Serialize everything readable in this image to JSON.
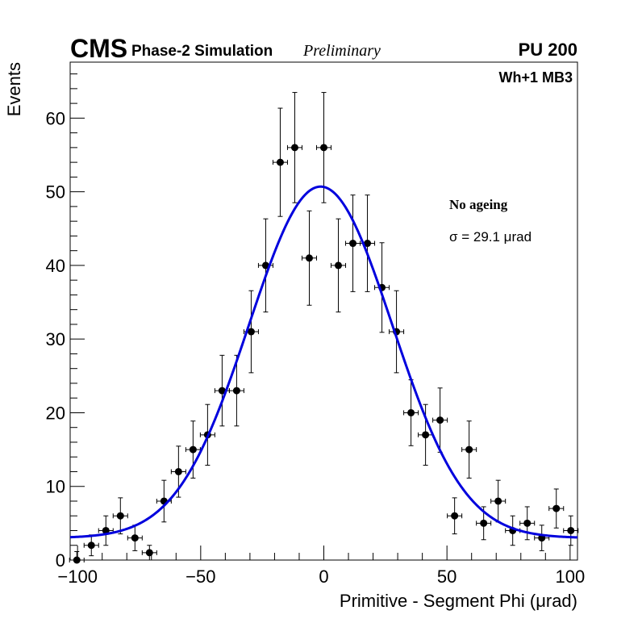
{
  "header": {
    "experiment": "CMS",
    "simulation_label": "Phase-2 Simulation",
    "status_label": "Preliminary",
    "pileup_label": "PU 200"
  },
  "chart_data": {
    "type": "scatter",
    "title": "",
    "region_label": "Wh+1 MB3",
    "annotation_title": "No ageing",
    "annotation_fit": "σ = 29.1 μrad",
    "xlabel": "Primitive - Segment Phi (μrad)",
    "ylabel": "Events",
    "xlim": [
      -103,
      103
    ],
    "ylim": [
      0,
      67.6
    ],
    "xticks": [
      -100,
      -50,
      0,
      50,
      100
    ],
    "xtick_labels": [
      "−100",
      "−50",
      "0",
      "50",
      "100"
    ],
    "yticks": [
      0,
      10,
      20,
      30,
      40,
      50,
      60
    ],
    "ytick_labels": [
      "0",
      "10",
      "20",
      "30",
      "40",
      "50",
      "60"
    ],
    "grid": false,
    "colors": {
      "points": "#000000",
      "fit": "#0000dd"
    },
    "bin_width": 5.9,
    "series": [
      {
        "name": "data",
        "x": [
          -100.3,
          -94.4,
          -88.5,
          -82.6,
          -76.7,
          -70.8,
          -64.9,
          -59.0,
          -53.1,
          -47.2,
          -41.3,
          -35.4,
          -29.5,
          -23.6,
          -17.7,
          -11.8,
          -5.9,
          0.0,
          5.9,
          11.8,
          17.7,
          23.6,
          29.5,
          35.4,
          41.3,
          47.2,
          53.1,
          59.0,
          64.9,
          70.8,
          76.7,
          82.6,
          88.5,
          94.4,
          100.3
        ],
        "y": [
          0,
          2,
          4,
          6,
          3,
          1,
          8,
          12,
          15,
          17,
          23,
          23,
          31,
          40,
          54,
          56,
          41,
          56,
          40,
          43,
          43,
          37,
          31,
          20,
          17,
          19,
          6,
          15,
          5,
          8,
          4,
          5,
          3,
          7,
          4
        ],
        "yerr": "sqrt(N)"
      },
      {
        "name": "fit",
        "function": "gaussian+constant",
        "amplitude": 47.7,
        "mean": -1.3,
        "sigma": 29.1,
        "constant": 3.0
      }
    ]
  }
}
